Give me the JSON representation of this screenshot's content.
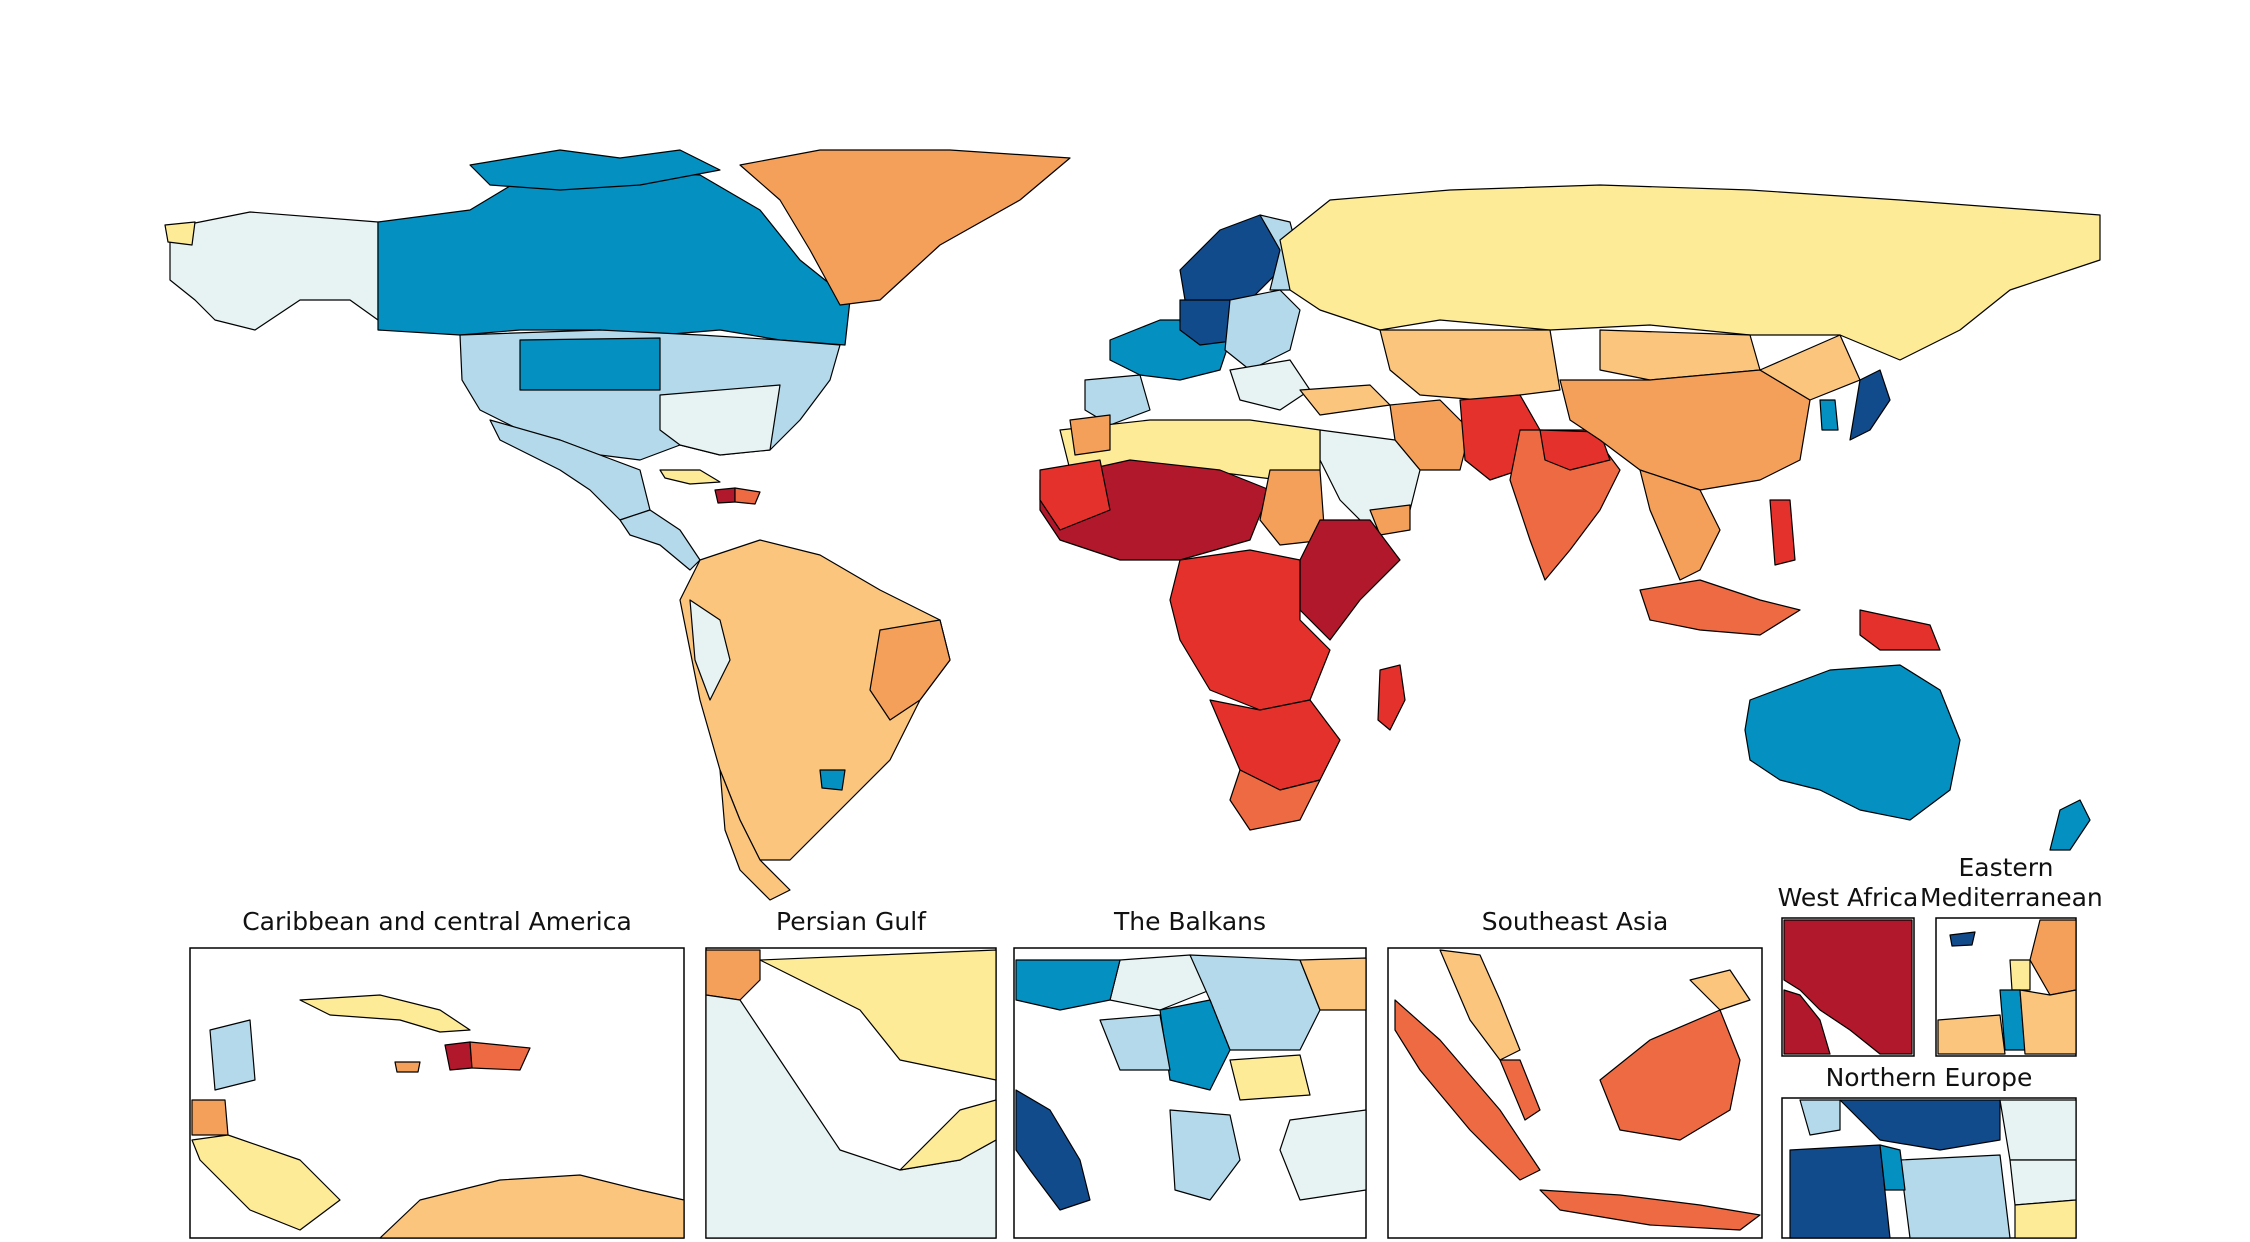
{
  "colors": {
    "darkred": "#b2182b",
    "red": "#e4312b",
    "redorange": "#ee6a43",
    "orange": "#f4a05b",
    "lightorange": "#fbc57e",
    "yellow": "#feeb97",
    "palecyan": "#e6f3f2",
    "lightblue": "#b4d9ea",
    "blue": "#0590c2",
    "darkblue": "#124b8c"
  },
  "insets": {
    "caribbean": "Caribbean and central America",
    "persian_gulf": "Persian Gulf",
    "balkans": "The Balkans",
    "southeast_asia": "Southeast Asia",
    "west_africa": "West Africa",
    "eastern_med_1": "Eastern",
    "eastern_med_2": "Mediterranean",
    "northern_europe": "Northern Europe"
  },
  "regions": [
    {
      "name": "Canada",
      "color": "blue"
    },
    {
      "name": "Alaska",
      "color": "palecyan"
    },
    {
      "name": "United States",
      "color": "lightblue"
    },
    {
      "name": "Greenland",
      "color": "orange"
    },
    {
      "name": "Mexico and Central America",
      "color": "lightblue"
    },
    {
      "name": "Haiti",
      "color": "darkred"
    },
    {
      "name": "Dominican Republic",
      "color": "redorange"
    },
    {
      "name": "South America",
      "color": "lightorange"
    },
    {
      "name": "Uruguay",
      "color": "blue"
    },
    {
      "name": "Chile",
      "color": "lightorange"
    },
    {
      "name": "Scandinavia",
      "color": "darkblue"
    },
    {
      "name": "Western Europe",
      "color": "blue"
    },
    {
      "name": "Eastern Europe",
      "color": "lightblue"
    },
    {
      "name": "Russia",
      "color": "yellow"
    },
    {
      "name": "North Africa",
      "color": "yellow"
    },
    {
      "name": "Sahel",
      "color": "darkred"
    },
    {
      "name": "Central Africa",
      "color": "red"
    },
    {
      "name": "East Africa",
      "color": "darkred"
    },
    {
      "name": "Southern Africa",
      "color": "red"
    },
    {
      "name": "South Africa",
      "color": "redorange"
    },
    {
      "name": "Madagascar",
      "color": "red"
    },
    {
      "name": "Sudan",
      "color": "orange"
    },
    {
      "name": "Arabian Peninsula",
      "color": "palecyan"
    },
    {
      "name": "Iran",
      "color": "orange"
    },
    {
      "name": "Central Asia",
      "color": "lightorange"
    },
    {
      "name": "China",
      "color": "orange"
    },
    {
      "name": "Mongolia",
      "color": "lightorange"
    },
    {
      "name": "Pakistan and Afghanistan",
      "color": "red"
    },
    {
      "name": "India",
      "color": "redorange"
    },
    {
      "name": "Southeast Asia mainland",
      "color": "orange"
    },
    {
      "name": "Japan",
      "color": "darkblue"
    },
    {
      "name": "Korea",
      "color": "blue"
    },
    {
      "name": "Indonesia",
      "color": "redorange"
    },
    {
      "name": "Papua New Guinea",
      "color": "red"
    },
    {
      "name": "Australia",
      "color": "blue"
    },
    {
      "name": "New Zealand",
      "color": "blue"
    }
  ]
}
